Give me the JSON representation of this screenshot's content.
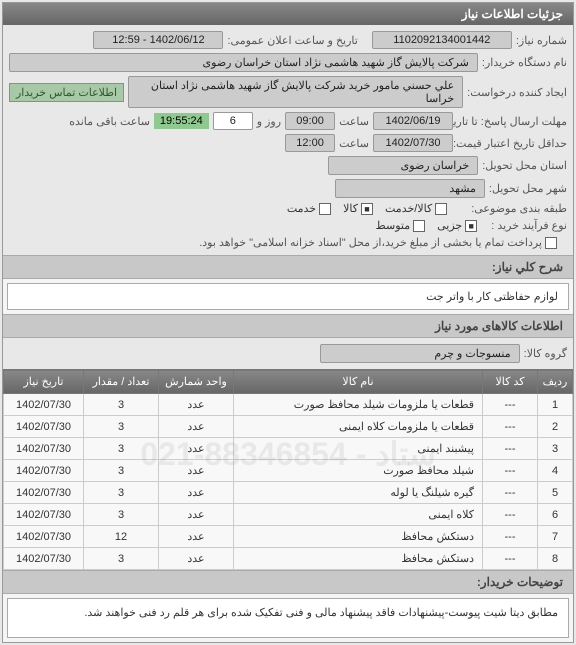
{
  "panel": {
    "title": "جزئیات اطلاعات نیاز"
  },
  "form": {
    "need_no_label": "شماره نیاز:",
    "need_no": "1102092134001442",
    "announce_label": "تاریخ و ساعت اعلان عمومی:",
    "announce": "1402/06/12 - 12:59",
    "buyer_label": "نام دستگاه خریدار:",
    "buyer": "شرکت پالایش گاز شهید هاشمی نژاد   استان خراسان رضوی",
    "creator_label": "ایجاد کننده درخواست:",
    "creator": "علي حسني مامور خريد شرکت پالایش گاز شهید هاشمی نژاد   استان خراسا",
    "contact": "اطلاعات تماس خریدار",
    "deadline_label": "مهلت ارسال پاسخ: تا تاریخ:",
    "deadline_date": "1402/06/19",
    "time_label": "ساعت",
    "deadline_time": "09:00",
    "day_hour_label": "روز و",
    "days": "6",
    "remain_time": "19:55:24",
    "remain_label": "ساعت باقی مانده",
    "valid_label": "حداقل تاریخ اعتبار قیمت: تا تاریخ:",
    "valid_date": "1402/07/30",
    "valid_time": "12:00",
    "province_label": "استان محل تحویل:",
    "province": "خراسان رضوی",
    "city_label": "شهر محل تحویل:",
    "city": "مشهد",
    "packaging_label": "طبقه بندی موضوعی:",
    "pk_service": "کالا/خدمت",
    "pk_goods": "کالا",
    "pk_svc": "خدمت",
    "purchase_label": "نوع فرآیند خرید :",
    "p_partial": "جزیی",
    "p_medium": "متوسط",
    "purchase_note": "پرداخت تمام یا بخشی از مبلغ خرید،از محل \"اسناد خزانه اسلامی\" خواهد بود."
  },
  "desc": {
    "label": "شرح کلي نياز:",
    "text": "لوازم حفاظتی کار با واتر جت"
  },
  "items_header": "اطلاعات کالاهای مورد نیاز",
  "group": {
    "label": "گروه کالا:",
    "value": "منسوجات و چرم"
  },
  "table": {
    "cols": [
      "ردیف",
      "کد کالا",
      "نام کالا",
      "واحد شمارش",
      "تعداد / مقدار",
      "تاریخ نیاز"
    ],
    "rows": [
      [
        "1",
        "---",
        "قطعات یا ملزومات شیلد محافظ صورت",
        "عدد",
        "3",
        "1402/07/30"
      ],
      [
        "2",
        "---",
        "قطعات یا ملزومات کلاه ایمنی",
        "عدد",
        "3",
        "1402/07/30"
      ],
      [
        "3",
        "---",
        "پیشبند ایمنی",
        "عدد",
        "3",
        "1402/07/30"
      ],
      [
        "4",
        "---",
        "شیلد محافظ صورت",
        "عدد",
        "3",
        "1402/07/30"
      ],
      [
        "5",
        "---",
        "گیره شیلنگ یا لوله",
        "عدد",
        "3",
        "1402/07/30"
      ],
      [
        "6",
        "---",
        "کلاه ایمنی",
        "عدد",
        "3",
        "1402/07/30"
      ],
      [
        "7",
        "---",
        "دستکش محافظ",
        "عدد",
        "12",
        "1402/07/30"
      ],
      [
        "8",
        "---",
        "دستکش محافظ",
        "عدد",
        "3",
        "1402/07/30"
      ]
    ]
  },
  "notes": {
    "label": "توضیحات خریدار:",
    "text": "مطابق دیتا شیت پیوست-پیشنهادات فاقد پیشنهاد مالی و فنی تفکیک شده برای هر قلم رد فنی خواهند شد."
  },
  "watermark": "ستاد - 88346854-021"
}
